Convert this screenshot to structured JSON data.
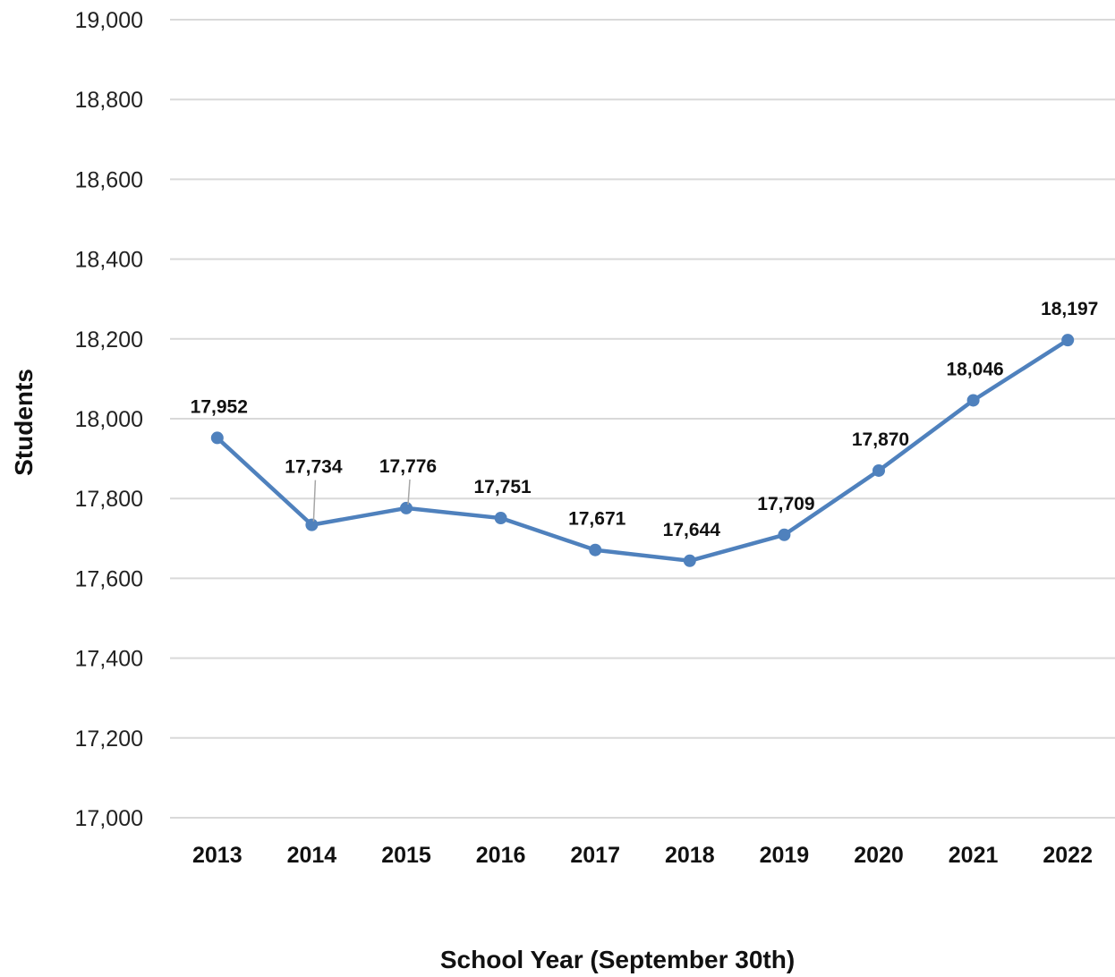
{
  "chart_data": {
    "type": "line",
    "title": "",
    "xlabel": "School Year (September 30th)",
    "ylabel": "Students",
    "categories": [
      "2013",
      "2014",
      "2015",
      "2016",
      "2017",
      "2018",
      "2019",
      "2020",
      "2021",
      "2022"
    ],
    "series": [
      {
        "values": [
          17952,
          17734,
          17776,
          17751,
          17671,
          17644,
          17709,
          17870,
          18046,
          18197
        ],
        "labels": [
          "17,952",
          "17,734",
          "17,776",
          "17,751",
          "17,671",
          "17,644",
          "17,709",
          "17,870",
          "18,046",
          "18,197"
        ],
        "color": "#4f81bd"
      }
    ],
    "ylim": [
      17000,
      19000
    ],
    "yticks": [
      17000,
      17200,
      17400,
      17600,
      17800,
      18000,
      18200,
      18400,
      18600,
      18800,
      19000
    ],
    "ytick_labels": [
      "17,000",
      "17,200",
      "17,400",
      "17,600",
      "17,800",
      "18,000",
      "18,200",
      "18,400",
      "18,600",
      "18,800",
      "19,000"
    ],
    "grid": true,
    "legend": "none",
    "data_labels": true,
    "markers": true
  }
}
